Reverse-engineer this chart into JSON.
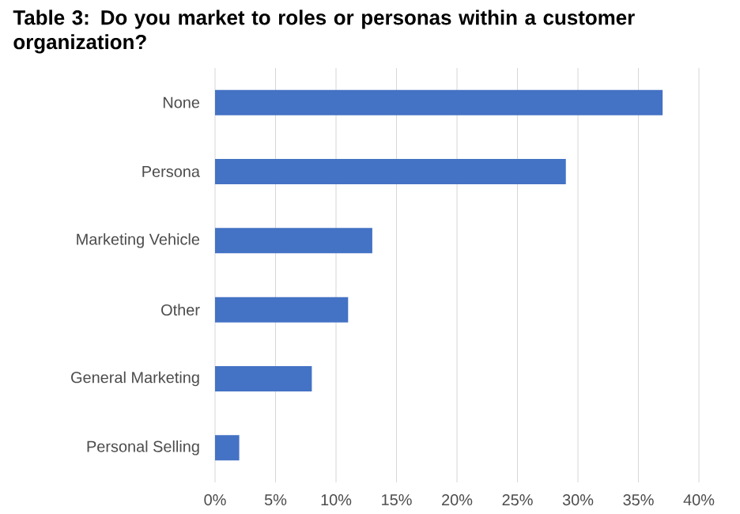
{
  "chart_data": {
    "type": "bar",
    "orientation": "horizontal",
    "title": "Table 3: Do you market to roles or personas within a customer organization?",
    "categories": [
      "None",
      "Persona",
      "Marketing Vehicle",
      "Other",
      "General Marketing",
      "Personal Selling"
    ],
    "values": [
      37,
      29,
      13,
      11,
      8,
      2
    ],
    "color": "#4472c4",
    "xlim": [
      0,
      40
    ],
    "xticks": [
      {
        "value": 0,
        "label": "0%"
      },
      {
        "value": 5,
        "label": "5%"
      },
      {
        "value": 10,
        "label": "10%"
      },
      {
        "value": 15,
        "label": "15%"
      },
      {
        "value": 20,
        "label": "20%"
      },
      {
        "value": 25,
        "label": "25%"
      },
      {
        "value": 30,
        "label": "30%"
      },
      {
        "value": 35,
        "label": "35%"
      },
      {
        "value": 40,
        "label": "40%"
      }
    ],
    "grid": "x"
  }
}
